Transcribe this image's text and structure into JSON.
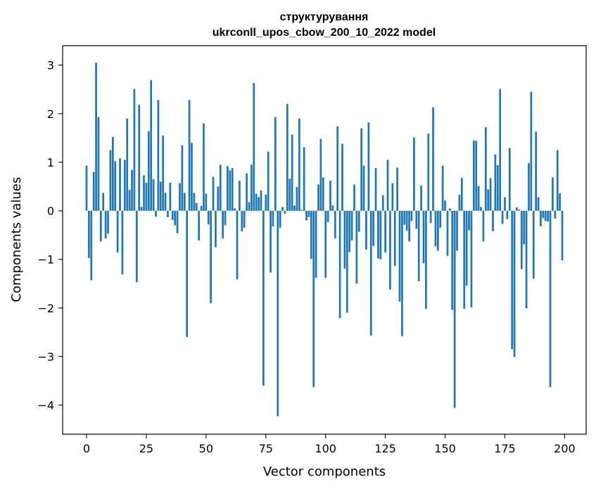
{
  "chart_data": {
    "type": "bar",
    "title_line1": "структурування",
    "title_line2": "ukrconll_upos_cbow_200_10_2022 model",
    "xlabel": "Vector components",
    "ylabel": "Components values",
    "xlim": [
      -10,
      209
    ],
    "ylim": [
      -4.6,
      3.4
    ],
    "xticks": [
      0,
      25,
      50,
      75,
      100,
      125,
      150,
      175,
      200
    ],
    "xtick_labels": [
      "0",
      "25",
      "50",
      "75",
      "100",
      "125",
      "150",
      "175",
      "200"
    ],
    "yticks": [
      3,
      2,
      1,
      0,
      -1,
      -2,
      -3,
      -4
    ],
    "ytick_labels": [
      "3",
      "2",
      "1",
      "0",
      "−1",
      "−2",
      "−3",
      "−4"
    ],
    "bar_color": "#1f77b4",
    "grid": false,
    "values": [
      0.93,
      -0.97,
      -1.43,
      0.8,
      3.05,
      1.93,
      -0.63,
      0.37,
      -0.57,
      -0.47,
      1.25,
      1.52,
      1.02,
      -0.86,
      1.08,
      -1.31,
      1.05,
      1.9,
      0.43,
      0.84,
      2.51,
      -1.47,
      2.18,
      0.08,
      0.73,
      0.58,
      1.64,
      2.69,
      0.65,
      -0.12,
      2.28,
      0.6,
      1.55,
      0.37,
      -0.13,
      0.58,
      -0.19,
      -0.3,
      -0.46,
      0.57,
      1.35,
      0.37,
      -2.6,
      2.28,
      1.4,
      0.37,
      0.16,
      -0.61,
      0.1,
      1.8,
      0.35,
      -0.28,
      -1.9,
      0.7,
      -0.75,
      0.5,
      0.95,
      -0.57,
      -0.3,
      0.92,
      0.83,
      0.88,
      0.05,
      -1.41,
      0.62,
      -0.42,
      -0.35,
      0.77,
      0.18,
      0.95,
      2.63,
      0.35,
      0.28,
      0.42,
      -3.6,
      0.33,
      1.22,
      -1.27,
      -0.32,
      1.93,
      -4.23,
      -0.35,
      0.08,
      -0.06,
      2.2,
      0.66,
      1.57,
      0.11,
      0.49,
      1.9,
      0.02,
      1.31,
      -0.2,
      -0.13,
      -0.99,
      -3.63,
      -1.38,
      0.54,
      1.48,
      0.69,
      -1.38,
      -0.23,
      0.62,
      0.11,
      -0.57,
      1.74,
      -2.21,
      1.38,
      -1.19,
      -2.1,
      -0.85,
      -0.61,
      0.54,
      -1.5,
      -0.43,
      1.7,
      0.93,
      -0.8,
      1.82,
      -2.57,
      -0.72,
      0.88,
      -0.98,
      -1.0,
      0.32,
      -0.86,
      1.05,
      -1.62,
      0.57,
      -1.14,
      0.89,
      -1.87,
      -2.58,
      -0.29,
      -0.41,
      -0.63,
      -0.21,
      1.51,
      -0.37,
      -1.45,
      0.52,
      -1.08,
      -2.02,
      1.59,
      -0.25,
      2.13,
      -0.73,
      -0.82,
      -0.35,
      0.93,
      0.21,
      -0.93,
      0.05,
      -2.04,
      -4.06,
      -0.82,
      0.33,
      0.68,
      -2.02,
      -1.54,
      -0.4,
      -1.99,
      1.45,
      1.44,
      0.51,
      0.08,
      -0.63,
      1.72,
      0.44,
      0.67,
      -0.42,
      1.16,
      0.94,
      2.51,
      -0.27,
      0.28,
      -0.17,
      1.29,
      -2.85,
      -3.01,
      0.07,
      0.03,
      -1.2,
      -0.69,
      -2.01,
      0.98,
      2.45,
      -1.4,
      1.63,
      0.28,
      -0.32,
      -0.15,
      -0.21,
      -0.22,
      -3.63,
      0.69,
      -0.16,
      1.25,
      0.36,
      -1.02
    ]
  }
}
